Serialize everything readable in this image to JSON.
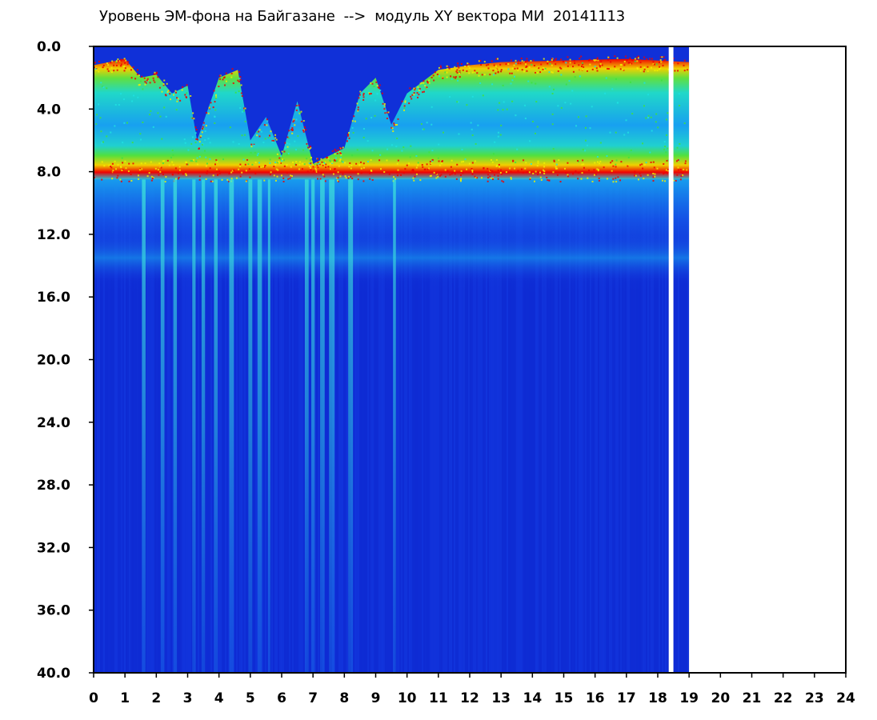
{
  "chart_data": {
    "type": "heatmap",
    "title": "Уровень ЭМ-фона на Байгазане  -->  модуль XY вектора МИ  20141113",
    "x_ticks": [
      "0",
      "1",
      "2",
      "3",
      "4",
      "5",
      "6",
      "7",
      "8",
      "9",
      "10",
      "11",
      "12",
      "13",
      "14",
      "15",
      "16",
      "17",
      "18",
      "19",
      "20",
      "21",
      "22",
      "23",
      "24"
    ],
    "y_ticks": [
      "0.0",
      "4.0",
      "8.0",
      "12.0",
      "16.0",
      "20.0",
      "24.0",
      "28.0",
      "32.0",
      "36.0",
      "40.0"
    ],
    "xlim": [
      0,
      24
    ],
    "ylim": [
      0,
      40
    ],
    "y_inverted": true,
    "data_coverage_hours": [
      0,
      19
    ],
    "gap_hours": [
      18.35,
      18.5
    ],
    "band_upper_edge_by_hour": [
      [
        0,
        1.2
      ],
      [
        1.0,
        0.8
      ],
      [
        1.5,
        2.0
      ],
      [
        2.0,
        1.8
      ],
      [
        2.5,
        3.0
      ],
      [
        3.0,
        2.5
      ],
      [
        3.3,
        6.0
      ],
      [
        4.0,
        2.0
      ],
      [
        4.6,
        1.5
      ],
      [
        5.0,
        6.0
      ],
      [
        5.5,
        4.5
      ],
      [
        6.0,
        7.0
      ],
      [
        6.5,
        3.5
      ],
      [
        7.0,
        7.5
      ],
      [
        8.0,
        6.5
      ],
      [
        8.5,
        3.0
      ],
      [
        9.0,
        2.0
      ],
      [
        9.5,
        5.0
      ],
      [
        10.0,
        3.0
      ],
      [
        11.0,
        1.5
      ],
      [
        12.0,
        1.2
      ],
      [
        13.0,
        1.0
      ],
      [
        15.0,
        0.9
      ],
      [
        17.0,
        0.8
      ],
      [
        19.0,
        1.0
      ]
    ],
    "band_lower_edge": 8.5,
    "secondary_band": [
      12.0,
      15.0
    ],
    "vertical_streaks_hours": [
      1.6,
      2.2,
      2.6,
      3.2,
      3.5,
      3.9,
      4.4,
      5.0,
      5.3,
      5.6,
      6.8,
      7.0,
      7.3,
      7.6,
      8.2,
      9.6
    ],
    "colors": {
      "background": "#1030d8",
      "deep": "#0a1ec8",
      "mid": "#18b0ff",
      "cyan": "#20e0e0",
      "green": "#40e040",
      "yellow": "#f0f000",
      "red": "#f00000",
      "frame": "#000000",
      "gap": "#ffffff"
    }
  }
}
